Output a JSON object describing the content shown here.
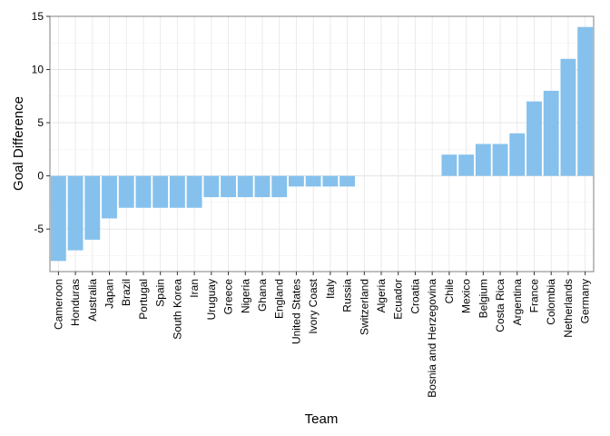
{
  "chart_data": {
    "type": "bar",
    "xlabel": "Team",
    "ylabel": "Goal Difference",
    "ylim": [
      -9,
      15
    ],
    "yticks": [
      -5,
      0,
      5,
      10,
      15
    ],
    "grid": true,
    "legend": "none",
    "bar_color": "#85c1ec",
    "categories": [
      "Cameroon",
      "Honduras",
      "Australia",
      "Japan",
      "Brazil",
      "Portugal",
      "Spain",
      "South Korea",
      "Iran",
      "Uruguay",
      "Greece",
      "Nigeria",
      "Ghana",
      "England",
      "United States",
      "Ivory Coast",
      "Italy",
      "Russia",
      "Switzerland",
      "Algeria",
      "Ecuador",
      "Croatia",
      "Bosnia and Herzegovina",
      "Chile",
      "Mexico",
      "Belgium",
      "Costa Rica",
      "Argentina",
      "France",
      "Colombia",
      "Netherlands",
      "Germany"
    ],
    "values": [
      -8,
      -7,
      -6,
      -4,
      -3,
      -3,
      -3,
      -3,
      -3,
      -2,
      -2,
      -2,
      -2,
      -2,
      -1,
      -1,
      -1,
      -1,
      0,
      0,
      0,
      0,
      0,
      2,
      2,
      3,
      3,
      4,
      7,
      8,
      11,
      14
    ]
  }
}
